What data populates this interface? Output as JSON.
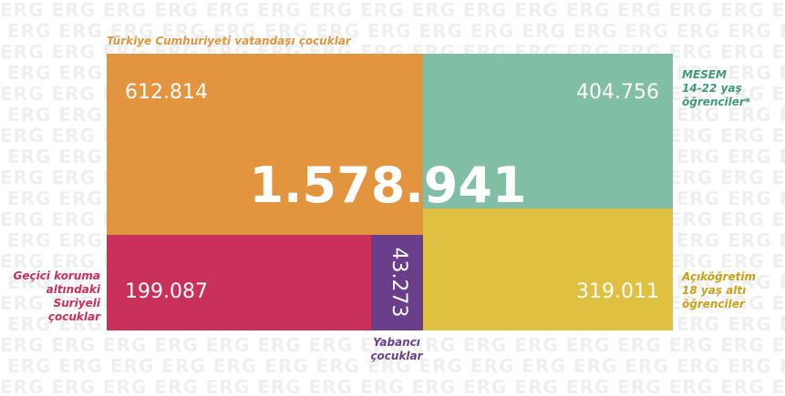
{
  "watermark": "ERG",
  "chart_data": {
    "type": "treemap",
    "total": "1.578.941",
    "segments": [
      {
        "name": "turkish_citizen",
        "value": 612814,
        "label": "612.814",
        "caption": [
          "Türkiye Cumhuriyeti vatandaşı çocuklar"
        ],
        "color": "#e2953e"
      },
      {
        "name": "mesem",
        "value": 404756,
        "label": "404.756",
        "caption": [
          "MESEM",
          "14-22 yaş",
          "öğrenciler*"
        ],
        "color": "#80bfa5"
      },
      {
        "name": "syrian_temp_protection",
        "value": 199087,
        "label": "199.087",
        "caption": [
          "Geçici koruma",
          "altındaki",
          "Suriyeli",
          "çocuklar"
        ],
        "color": "#c9305a"
      },
      {
        "name": "foreign",
        "value": 43273,
        "label": "43.273",
        "caption": [
          "Yabancı",
          "çocuklar"
        ],
        "color": "#6b3e8c"
      },
      {
        "name": "open_education",
        "value": 319011,
        "label": "319.011",
        "caption": [
          "Açıköğretim",
          "18 yaş altı",
          "öğrenciler"
        ],
        "color": "#e0c040"
      }
    ],
    "label_colors": {
      "turkish_citizen": "#e2953e",
      "mesem": "#3f9a78",
      "syrian_temp_protection": "#c9305a",
      "foreign": "#6b3e8c",
      "open_education": "#c9a21a"
    }
  }
}
